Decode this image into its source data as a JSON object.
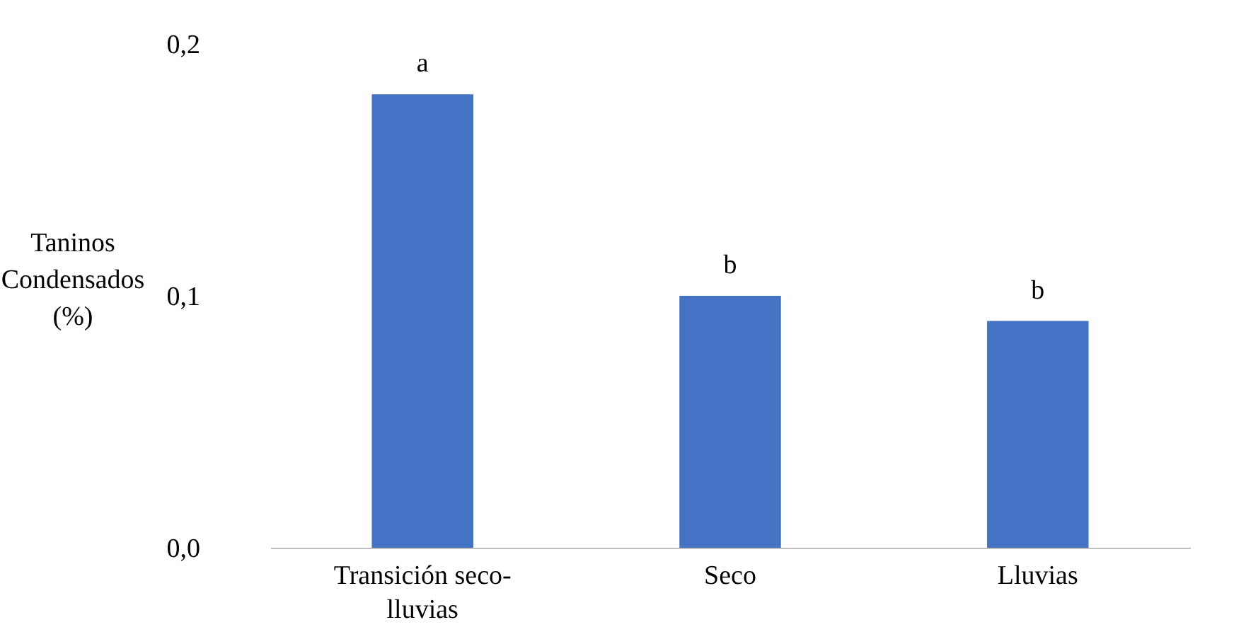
{
  "chart_data": {
    "type": "bar",
    "ylabel": "Taninos Condensados (%)",
    "categories": [
      "Transición seco-lluvias",
      "Seco",
      "Lluvias"
    ],
    "values": [
      0.18,
      0.1,
      0.09
    ],
    "color": "#4472c4",
    "ylim": [
      0,
      0.2
    ],
    "yticks": [
      {
        "value": 0,
        "label": "0,0"
      },
      {
        "value": 0.1,
        "label": "0,1"
      },
      {
        "value": 0.2,
        "label": "0,2"
      }
    ],
    "grid": false,
    "annotations": [
      {
        "text": "a",
        "x": "Transición seco-lluvias",
        "y": 0.18
      },
      {
        "text": "b",
        "x": "Seco",
        "y": 0.1
      },
      {
        "text": "b",
        "x": "Lluvias",
        "y": 0.09
      }
    ]
  }
}
